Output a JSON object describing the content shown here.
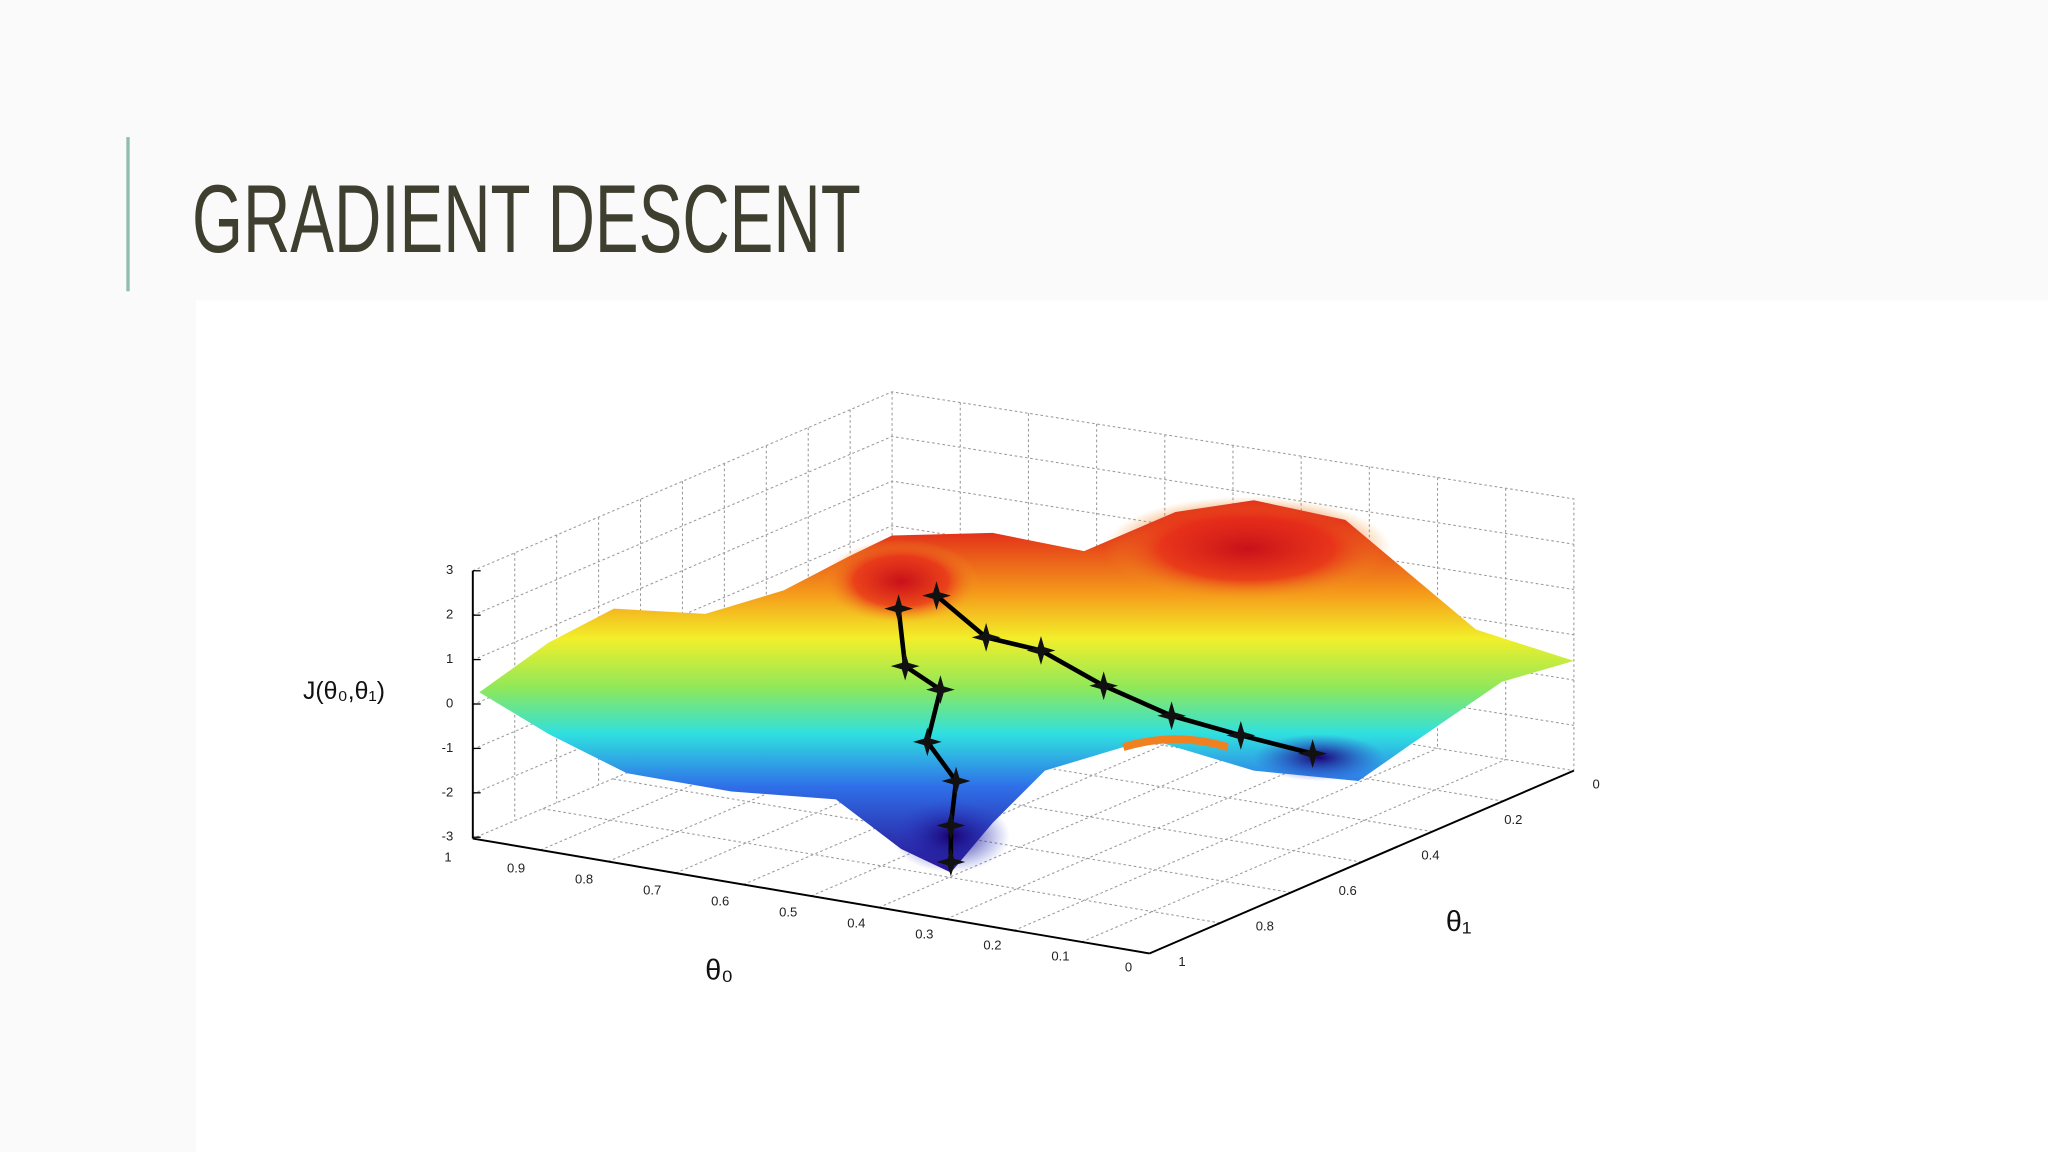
{
  "slide": {
    "title": "GRADIENT DESCENT"
  },
  "figure": {
    "z_label": "J(θ₀,θ₁)",
    "x_label": "θ₀",
    "y_label": "θ₁",
    "z_ticks": [
      "3",
      "2",
      "1",
      "0",
      "-1",
      "-2",
      "-3"
    ],
    "x_ticks": [
      "1",
      "0.9",
      "0.8",
      "0.7",
      "0.6",
      "0.5",
      "0.4",
      "0.3",
      "0.2",
      "0.1",
      "0"
    ],
    "y_ticks": [
      "1",
      "0.8",
      "0.6",
      "0.4",
      "0.2",
      "0"
    ]
  }
}
